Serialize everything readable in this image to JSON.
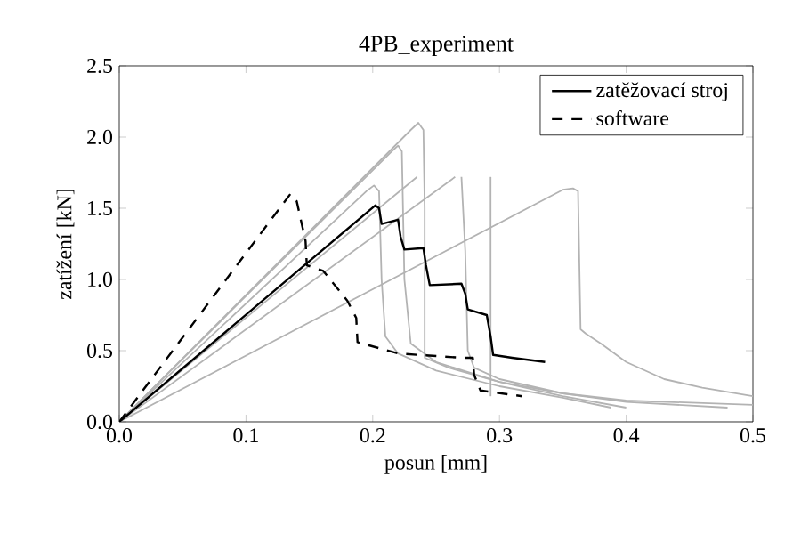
{
  "chart_data": {
    "type": "line",
    "title": "4PB_experiment",
    "xlabel": "posun [mm]",
    "ylabel": "zatížení [kN]",
    "xlim": [
      0,
      0.5
    ],
    "ylim": [
      0,
      2.5
    ],
    "xticks": [
      {
        "value": 0,
        "label": "0.0"
      },
      0.1,
      0.2,
      0.3,
      0.4,
      0.5
    ],
    "yticks": [
      {
        "value": 0,
        "label": "0.0"
      },
      0.5,
      {
        "value": 1,
        "label": "1.0"
      },
      1.5,
      {
        "value": 2,
        "label": "2.0"
      },
      2.5
    ],
    "legend": "top right",
    "series": [
      {
        "color": "#b3b3b3",
        "line_style": "solid",
        "x": [
          0,
          0.195,
          0.201,
          0.205,
          0.207,
          0.21,
          0.22,
          0.25,
          0.3,
          0.35,
          0.388
        ],
        "values": [
          0,
          1.62,
          1.66,
          1.62,
          1.0,
          0.6,
          0.48,
          0.36,
          0.25,
          0.17,
          0.1
        ]
      },
      {
        "color": "#b3b3b3",
        "line_style": "solid",
        "x": [
          0,
          0.215,
          0.22,
          0.223,
          0.225,
          0.23,
          0.25,
          0.3,
          0.35,
          0.4
        ],
        "values": [
          0,
          1.9,
          1.94,
          1.9,
          1.0,
          0.55,
          0.42,
          0.28,
          0.18,
          0.1
        ]
      },
      {
        "color": "#b3b3b3",
        "line_style": "solid",
        "x": [
          0,
          0.23,
          0.236,
          0.24,
          0.241,
          0.241,
          0.26,
          0.3,
          0.35,
          0.4,
          0.48
        ],
        "values": [
          0,
          2.05,
          2.1,
          2.05,
          1.5,
          0.45,
          0.38,
          0.28,
          0.2,
          0.14,
          0.1
        ]
      },
      {
        "color": "#b3b3b3",
        "line_style": "solid",
        "x": [
          0,
          0.235
        ],
        "values": [
          0,
          1.72
        ]
      },
      {
        "color": "#b3b3b3",
        "line_style": "solid",
        "x": [
          0.27,
          0.273,
          0.275,
          0.28,
          0.3,
          0.35,
          0.4,
          0.5
        ],
        "values": [
          1.72,
          1.2,
          0.5,
          0.38,
          0.3,
          0.2,
          0.15,
          0.12
        ]
      },
      {
        "color": "#b3b3b3",
        "line_style": "solid",
        "x": [
          0,
          0.265
        ],
        "values": [
          0,
          1.72
        ]
      },
      {
        "color": "#b3b3b3",
        "line_style": "solid",
        "x": [
          0,
          0.35,
          0.358,
          0.362,
          0.364,
          0.368,
          0.38,
          0.4,
          0.43,
          0.46,
          0.5
        ],
        "values": [
          0,
          1.63,
          1.64,
          1.62,
          0.65,
          0.62,
          0.55,
          0.42,
          0.3,
          0.24,
          0.18
        ]
      },
      {
        "color": "#b3b3b3",
        "line_style": "solid",
        "x": [
          0.293,
          0.293
        ],
        "values": [
          1.72,
          0.18
        ]
      },
      {
        "name": "zatěžovací stroj",
        "color": "#000000",
        "line_style": "solid",
        "x": [
          0,
          0.202,
          0.205,
          0.207,
          0.22,
          0.222,
          0.225,
          0.24,
          0.242,
          0.245,
          0.27,
          0.273,
          0.275,
          0.29,
          0.293,
          0.295,
          0.31,
          0.336
        ],
        "values": [
          0,
          1.52,
          1.5,
          1.39,
          1.42,
          1.3,
          1.21,
          1.22,
          1.1,
          0.96,
          0.97,
          0.9,
          0.79,
          0.75,
          0.6,
          0.47,
          0.45,
          0.42
        ]
      },
      {
        "name": "software",
        "color": "#000000",
        "line_style": "dashed",
        "x": [
          0,
          0.135,
          0.14,
          0.147,
          0.148,
          0.161,
          0.18,
          0.187,
          0.188,
          0.22,
          0.271,
          0.279,
          0.28,
          0.285,
          0.318
        ],
        "values": [
          0,
          1.6,
          1.55,
          1.27,
          1.1,
          1.06,
          0.85,
          0.73,
          0.56,
          0.48,
          0.45,
          0.45,
          0.33,
          0.22,
          0.18
        ]
      }
    ]
  }
}
